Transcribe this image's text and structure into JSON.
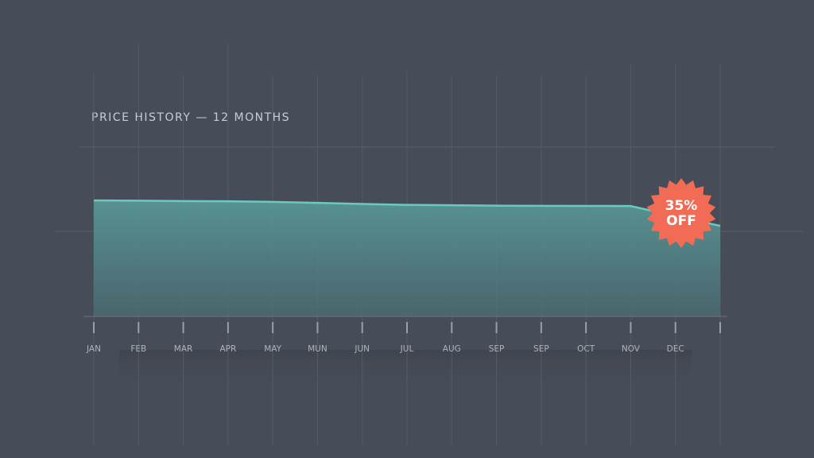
{
  "chart_data": {
    "type": "area",
    "title": "PRICE HISTORY — 12 MONTHS",
    "categories": [
      "JAN",
      "FEB",
      "MAR",
      "APR",
      "MAY",
      "MUN",
      "JUN",
      "JUL",
      "AUG",
      "SEP",
      "SEP",
      "OCT",
      "NOV",
      "DEC",
      null
    ],
    "values": [
      100,
      99.8,
      99.5,
      99.3,
      98.8,
      97.9,
      97,
      96.2,
      95.9,
      95.5,
      95.4,
      95.3,
      95.2,
      86.6,
      78.1
    ],
    "ylim": [
      0,
      146
    ],
    "color": "#6cc9bd",
    "annotation": {
      "lines": [
        "35%",
        "OFF"
      ],
      "color": "#f26b55"
    }
  }
}
